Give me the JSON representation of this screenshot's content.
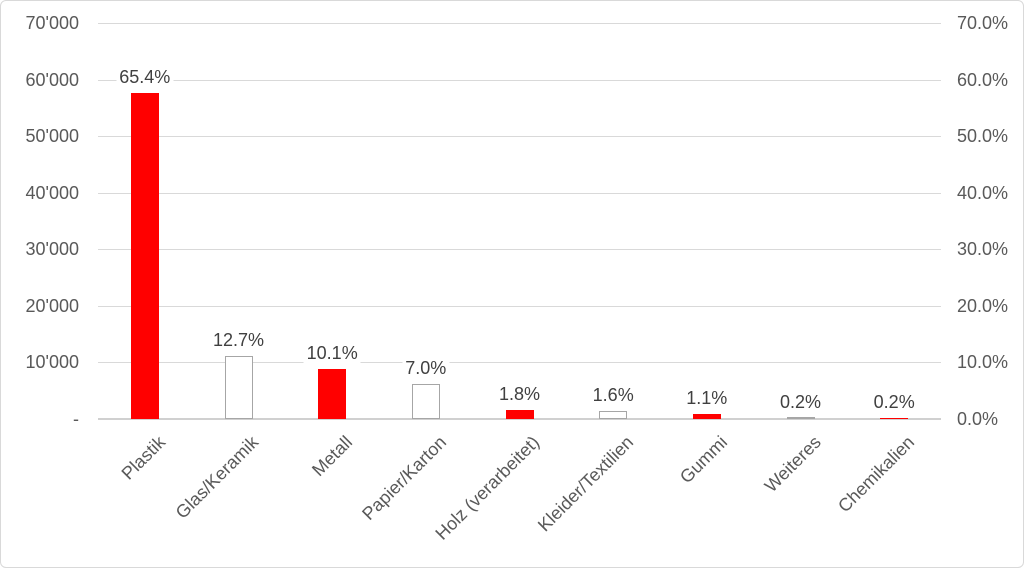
{
  "chart_data": {
    "type": "bar",
    "title": "",
    "categories": [
      "Plastik",
      "Glas/Keramik",
      "Metall",
      "Papier/Karton",
      "Holz (verarbeitet)",
      "Kleider/Textilien",
      "Gummi",
      "Weiteres",
      "Chemikalien"
    ],
    "series": [
      {
        "percent_labels": [
          "65.4%",
          "12.7%",
          "10.1%",
          "7.0%",
          "1.8%",
          "1.6%",
          "1.1%",
          "0.2%",
          "0.2%"
        ],
        "percent_values": [
          65.4,
          12.7,
          10.1,
          7.0,
          1.8,
          1.6,
          1.1,
          0.2,
          0.2
        ],
        "values_left_axis_estimate": [
          57550,
          11180,
          8890,
          6160,
          1580,
          1410,
          970,
          180,
          180
        ],
        "bar_styles": [
          "red",
          "outline",
          "red",
          "outline",
          "red",
          "outline",
          "red",
          "outline",
          "red"
        ]
      }
    ],
    "left_axis": {
      "min": 0,
      "max": 70000,
      "tick_step": 10000,
      "ticks": [
        "70'000",
        "60'000",
        "50'000",
        "40'000",
        "30'000",
        "20'000",
        "10'000",
        "-"
      ]
    },
    "right_axis": {
      "ticks": [
        "70.0%",
        "60.0%",
        "50.0%",
        "40.0%",
        "30.0%",
        "20.0%",
        "10.0%",
        "0.0%"
      ]
    },
    "grid": true,
    "legend": "none",
    "colors": {
      "bar_red": "#ff0000",
      "bar_outline": "#a6a6a6",
      "bar_fill_white": "#ffffff",
      "gridline": "#d9d9d9",
      "axis_line": "#d0d0d0",
      "tick_text": "#595959",
      "data_label_text": "#404040",
      "background": "#ffffff"
    }
  }
}
